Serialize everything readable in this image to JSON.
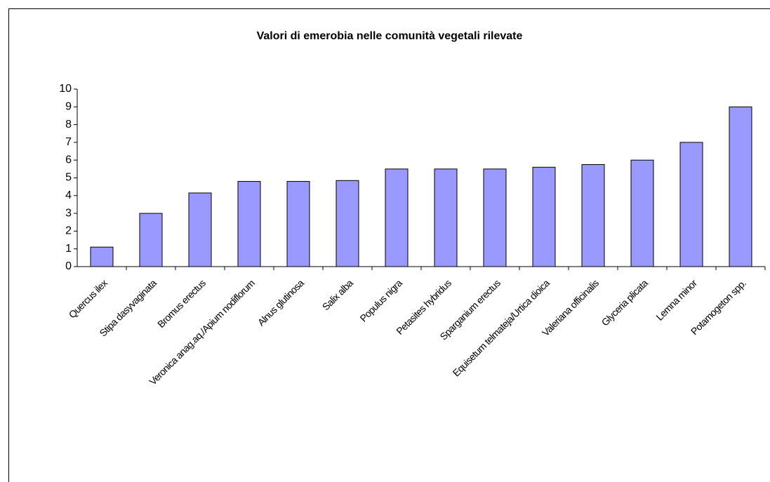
{
  "chart_data": {
    "type": "bar",
    "title": "Valori di emerobia nelle comunità vegetali rilevate",
    "categories": [
      "Quercus ilex",
      "Stipa dasyvaginata",
      "Bromus erectus",
      "Veronica anag.aq./Apium nodiflorum",
      "Alnus glutinosa",
      "Salix alba",
      "Populus nigra",
      "Petasites hybridus",
      "Sparganium erectus",
      "Equisetum telmateja/Urtica dioica",
      "Valeriana officinalis",
      "Glyceria plicata",
      "Lemna minor",
      "Potamogeton spp."
    ],
    "values": [
      1.1,
      3,
      4.15,
      4.8,
      4.8,
      4.85,
      5.5,
      5.5,
      5.5,
      5.6,
      5.75,
      6,
      7,
      9
    ],
    "color": "#9999ff",
    "ylim": [
      0,
      10
    ],
    "yticks": [
      0,
      1,
      2,
      3,
      4,
      5,
      6,
      7,
      8,
      9,
      10
    ],
    "grid": false
  }
}
